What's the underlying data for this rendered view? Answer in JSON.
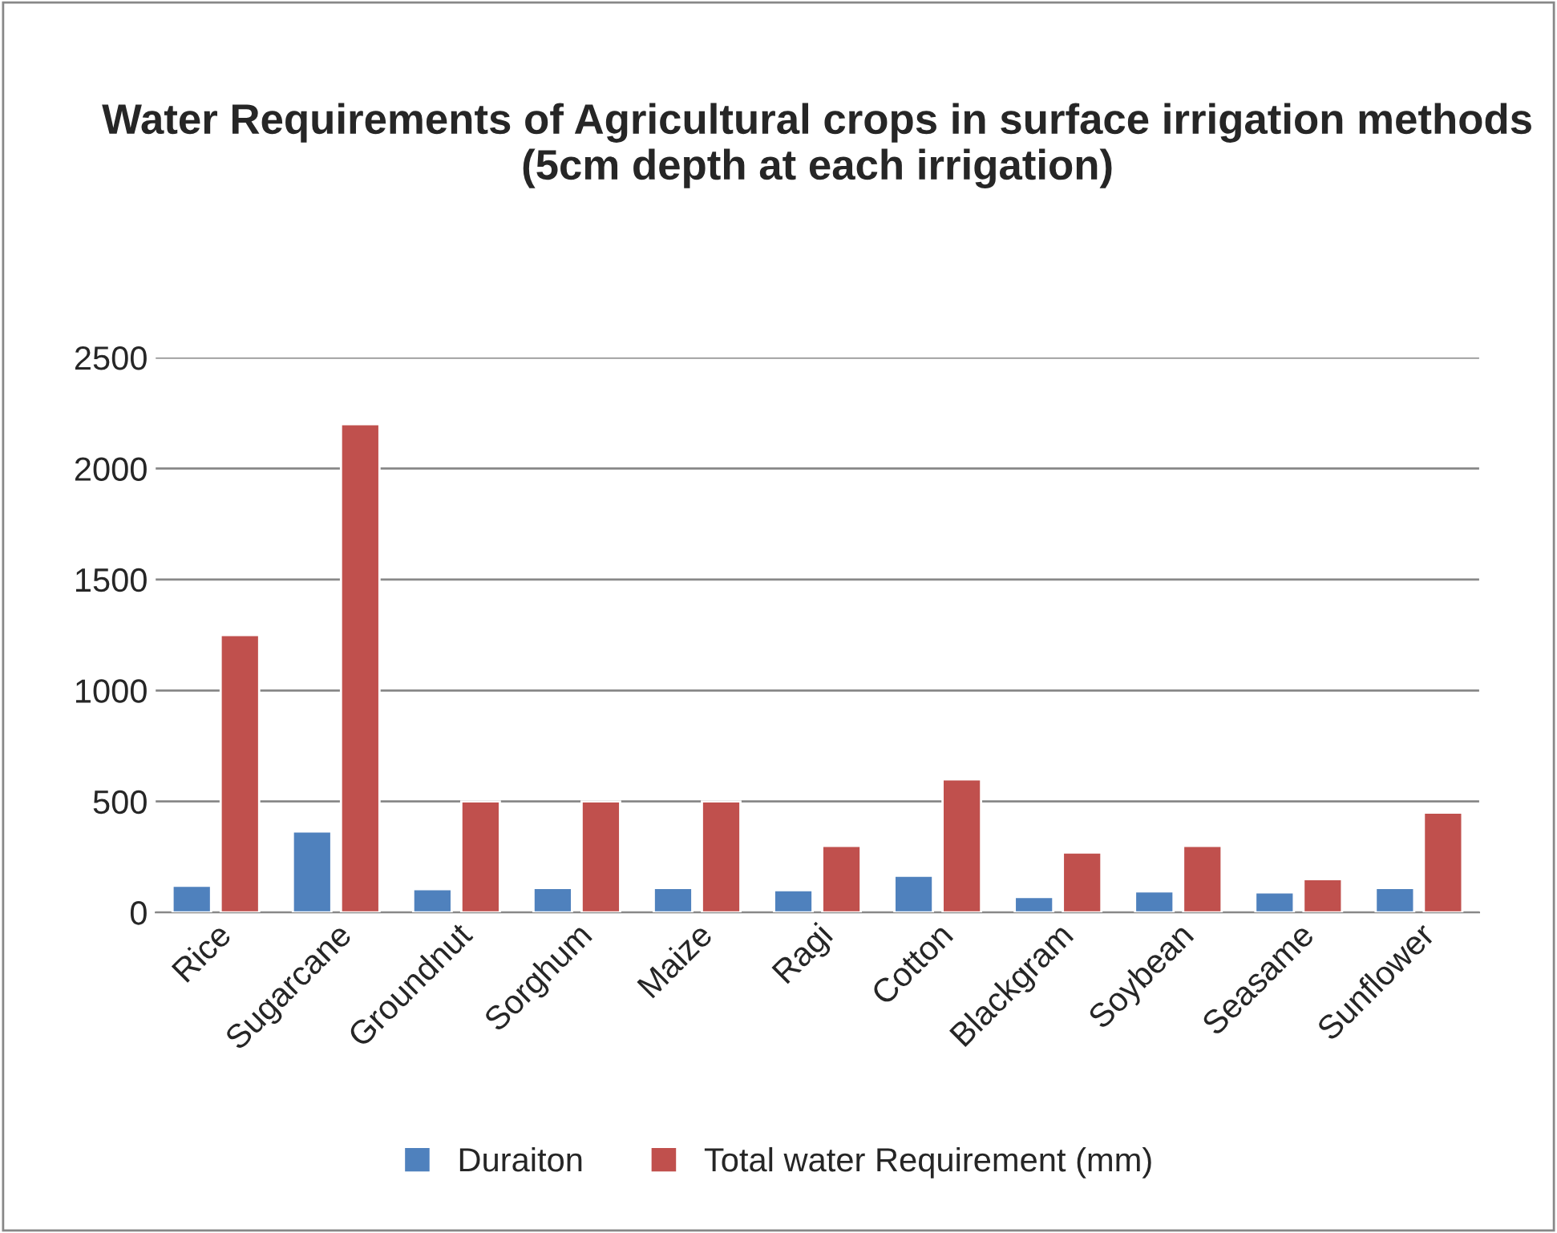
{
  "chart_data": {
    "type": "bar",
    "title": "Water Requirements of Agricultural crops in surface irrigation methods\n(5cm depth at each irrigation)",
    "categories": [
      "Rice",
      "Sugarcane",
      "Groundnut",
      "Sorghum",
      "Maize",
      "Ragi",
      "Cotton",
      "Blackgram",
      "Soybean",
      "Seasame",
      "Sunflower"
    ],
    "series": [
      {
        "name": "Duraiton",
        "color": "#4f81bd",
        "values": [
          120,
          365,
          105,
          110,
          110,
          100,
          165,
          70,
          95,
          90,
          110
        ]
      },
      {
        "name": "Total water Requirement (mm)",
        "color": "#c0504d",
        "values": [
          1250,
          2200,
          500,
          500,
          500,
          300,
          600,
          270,
          300,
          150,
          450
        ]
      }
    ],
    "ylim": [
      0,
      2500
    ],
    "yticks": [
      0,
      500,
      1000,
      1500,
      2000,
      2500
    ],
    "grid": "y",
    "legend": "bottom"
  }
}
